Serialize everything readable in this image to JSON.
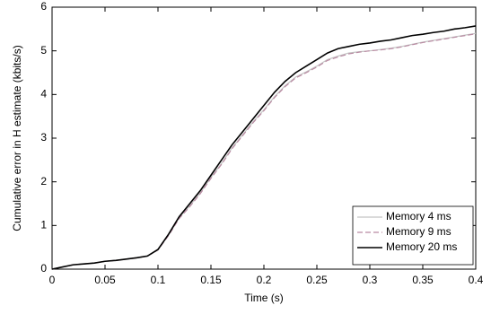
{
  "chart_data": {
    "type": "line",
    "xlabel": "Time (s)",
    "ylabel": "Cumulative error in H estimate (kbits/s)",
    "x": [
      0,
      0.01,
      0.02,
      0.03,
      0.04,
      0.05,
      0.06,
      0.07,
      0.08,
      0.09,
      0.1,
      0.11,
      0.12,
      0.13,
      0.14,
      0.15,
      0.16,
      0.17,
      0.18,
      0.19,
      0.2,
      0.21,
      0.22,
      0.23,
      0.24,
      0.25,
      0.26,
      0.27,
      0.28,
      0.29,
      0.3,
      0.31,
      0.32,
      0.33,
      0.34,
      0.35,
      0.36,
      0.37,
      0.38,
      0.39,
      0.4
    ],
    "series": [
      {
        "name": "Memory 4 ms",
        "color": "#c4c4c4",
        "dashed": false,
        "values": [
          0,
          0.05,
          0.1,
          0.12,
          0.14,
          0.18,
          0.2,
          0.23,
          0.26,
          0.3,
          0.45,
          0.78,
          1.18,
          1.45,
          1.75,
          2.1,
          2.42,
          2.78,
          3.08,
          3.38,
          3.65,
          3.95,
          4.2,
          4.4,
          4.52,
          4.65,
          4.8,
          4.88,
          4.95,
          4.98,
          5.0,
          5.03,
          5.06,
          5.1,
          5.15,
          5.2,
          5.24,
          5.28,
          5.32,
          5.36,
          5.4
        ]
      },
      {
        "name": "Memory 9 ms",
        "color": "#b98aa2",
        "dashed": true,
        "values": [
          0,
          0.05,
          0.1,
          0.12,
          0.14,
          0.18,
          0.2,
          0.23,
          0.26,
          0.3,
          0.44,
          0.77,
          1.16,
          1.43,
          1.73,
          2.08,
          2.4,
          2.76,
          3.06,
          3.36,
          3.63,
          3.93,
          4.18,
          4.38,
          4.5,
          4.63,
          4.78,
          4.86,
          4.93,
          4.97,
          5.0,
          5.02,
          5.05,
          5.09,
          5.14,
          5.19,
          5.23,
          5.27,
          5.31,
          5.35,
          5.39
        ]
      },
      {
        "name": "Memory 20 ms",
        "color": "#000000",
        "dashed": false,
        "values": [
          0,
          0.05,
          0.1,
          0.12,
          0.14,
          0.18,
          0.2,
          0.23,
          0.26,
          0.3,
          0.45,
          0.8,
          1.2,
          1.5,
          1.8,
          2.15,
          2.5,
          2.85,
          3.15,
          3.45,
          3.75,
          4.05,
          4.3,
          4.5,
          4.65,
          4.8,
          4.95,
          5.05,
          5.1,
          5.15,
          5.18,
          5.22,
          5.25,
          5.3,
          5.35,
          5.38,
          5.42,
          5.45,
          5.5,
          5.53,
          5.57
        ]
      }
    ],
    "xlim": [
      0,
      0.4
    ],
    "xticks": [
      0,
      0.05,
      0.1,
      0.15,
      0.2,
      0.25,
      0.3,
      0.35,
      0.4
    ],
    "ylim": [
      0,
      6
    ],
    "yticks": [
      0,
      1,
      2,
      3,
      4,
      5,
      6
    ],
    "grid": false,
    "legend": "lower right"
  }
}
